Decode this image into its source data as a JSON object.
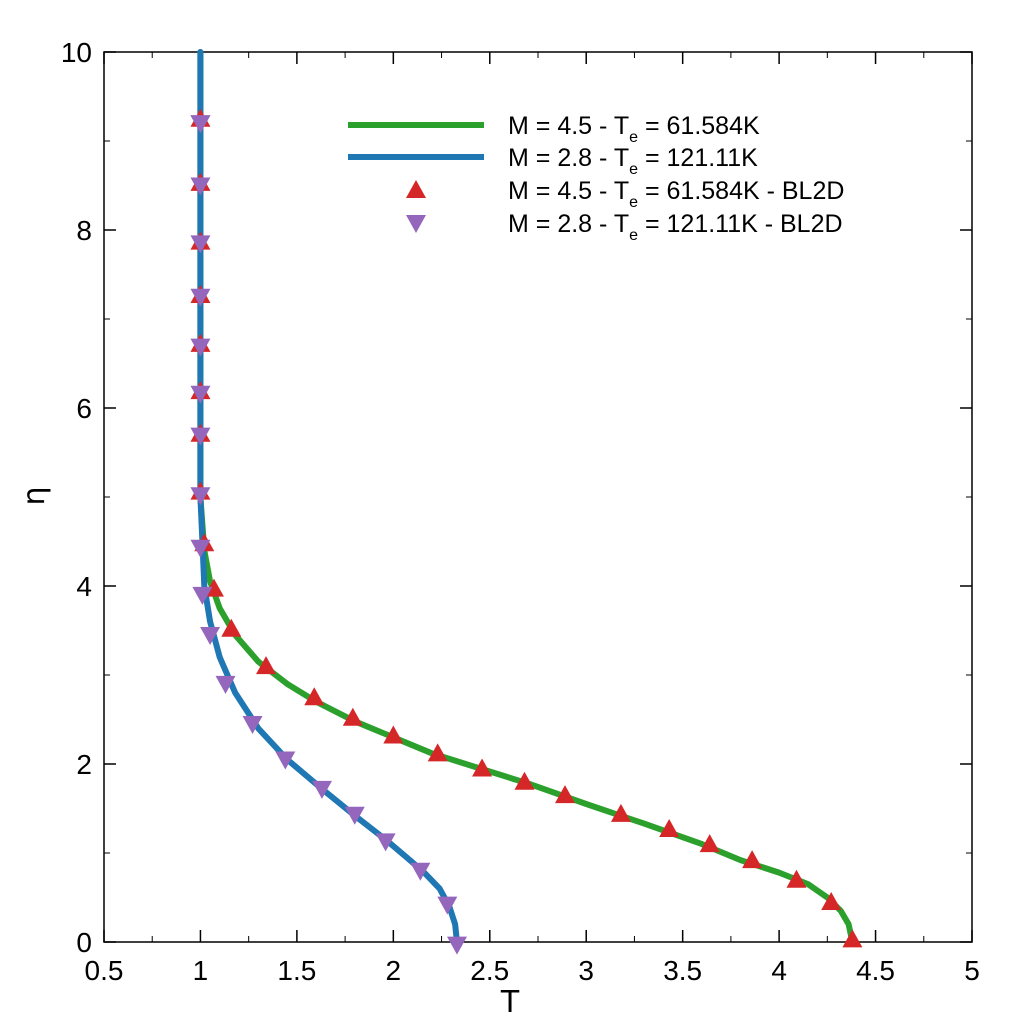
{
  "chart_data": {
    "type": "line",
    "xlabel": "T",
    "ylabel": "η",
    "xlim": [
      0.5,
      5
    ],
    "ylim": [
      0,
      10
    ],
    "x_ticks": [
      "0.5",
      "1",
      "1.5",
      "2",
      "2.5",
      "3",
      "3.5",
      "4",
      "4.5",
      "5"
    ],
    "y_ticks": [
      "0",
      "2",
      "4",
      "6",
      "8",
      "10"
    ],
    "grid": false,
    "legend_position": "top-right",
    "series": [
      {
        "name": "M = 4.5 - T_e = 61.584K",
        "legend": {
          "prefix": "M = 4.5 - T",
          "subscript": "e",
          "suffix": " = 61.584K"
        },
        "kind": "line",
        "color": "#2ca02c",
        "x": [
          4.38,
          4.36,
          4.32,
          4.25,
          4.15,
          4.0,
          3.8,
          3.6,
          3.3,
          3.0,
          2.7,
          2.45,
          2.2,
          2.0,
          1.8,
          1.6,
          1.45,
          1.3,
          1.18,
          1.1,
          1.05,
          1.02,
          1.0,
          1.0
        ],
        "y": [
          0.0,
          0.2,
          0.35,
          0.5,
          0.65,
          0.78,
          0.92,
          1.1,
          1.33,
          1.55,
          1.78,
          1.95,
          2.12,
          2.3,
          2.48,
          2.7,
          2.9,
          3.15,
          3.45,
          3.75,
          4.05,
          4.4,
          5.0,
          10.0
        ]
      },
      {
        "name": "M = 2.8 - T_e = 121.11K",
        "legend": {
          "prefix": "M = 2.8 - T",
          "subscript": "e",
          "suffix": " = 121.11K"
        },
        "kind": "line",
        "color": "#1f77b4",
        "x": [
          2.33,
          2.32,
          2.29,
          2.24,
          2.16,
          2.07,
          1.96,
          1.8,
          1.63,
          1.45,
          1.3,
          1.18,
          1.1,
          1.05,
          1.02,
          1.01,
          1.0,
          1.0
        ],
        "y": [
          0.0,
          0.2,
          0.4,
          0.6,
          0.78,
          0.95,
          1.15,
          1.42,
          1.72,
          2.05,
          2.4,
          2.8,
          3.2,
          3.6,
          4.0,
          4.5,
          5.0,
          10.0
        ]
      },
      {
        "name": "M = 4.5 - T_e = 61.584K - BL2D",
        "legend": {
          "prefix": "M = 4.5 - T",
          "subscript": "e",
          "suffix": " = 61.584K - BL2D"
        },
        "kind": "marker-triangle-up",
        "color": "#d62728",
        "x": [
          4.38,
          4.27,
          4.09,
          3.86,
          3.64,
          3.43,
          3.18,
          2.89,
          2.68,
          2.46,
          2.23,
          2.0,
          1.79,
          1.59,
          1.34,
          1.16,
          1.07,
          1.02,
          1.0,
          1.0,
          1.0,
          1.0,
          1.0,
          1.0,
          1.0,
          1.0
        ],
        "y": [
          0.03,
          0.45,
          0.7,
          0.92,
          1.1,
          1.27,
          1.44,
          1.65,
          1.8,
          1.95,
          2.12,
          2.32,
          2.52,
          2.75,
          3.1,
          3.52,
          3.97,
          4.48,
          5.06,
          5.71,
          6.19,
          6.72,
          7.27,
          7.87,
          8.53,
          9.25
        ]
      },
      {
        "name": "M = 2.8 - T_e = 121.11K - BL2D",
        "legend": {
          "prefix": "M = 2.8 - T",
          "subscript": "e",
          "suffix": " = 121.11K - BL2D"
        },
        "kind": "marker-triangle-down",
        "color": "#9467bd",
        "x": [
          2.33,
          2.28,
          2.14,
          1.96,
          1.8,
          1.63,
          1.44,
          1.27,
          1.13,
          1.05,
          1.01,
          1.0,
          1.0,
          1.0,
          1.0,
          1.0,
          1.0,
          1.0,
          1.0,
          1.0,
          1.0
        ],
        "y": [
          -0.03,
          0.42,
          0.8,
          1.13,
          1.43,
          1.72,
          2.05,
          2.45,
          2.9,
          3.45,
          3.9,
          4.43,
          5.02,
          5.69,
          6.16,
          6.69,
          7.25,
          7.85,
          8.5,
          9.2,
          9.2
        ]
      }
    ]
  }
}
